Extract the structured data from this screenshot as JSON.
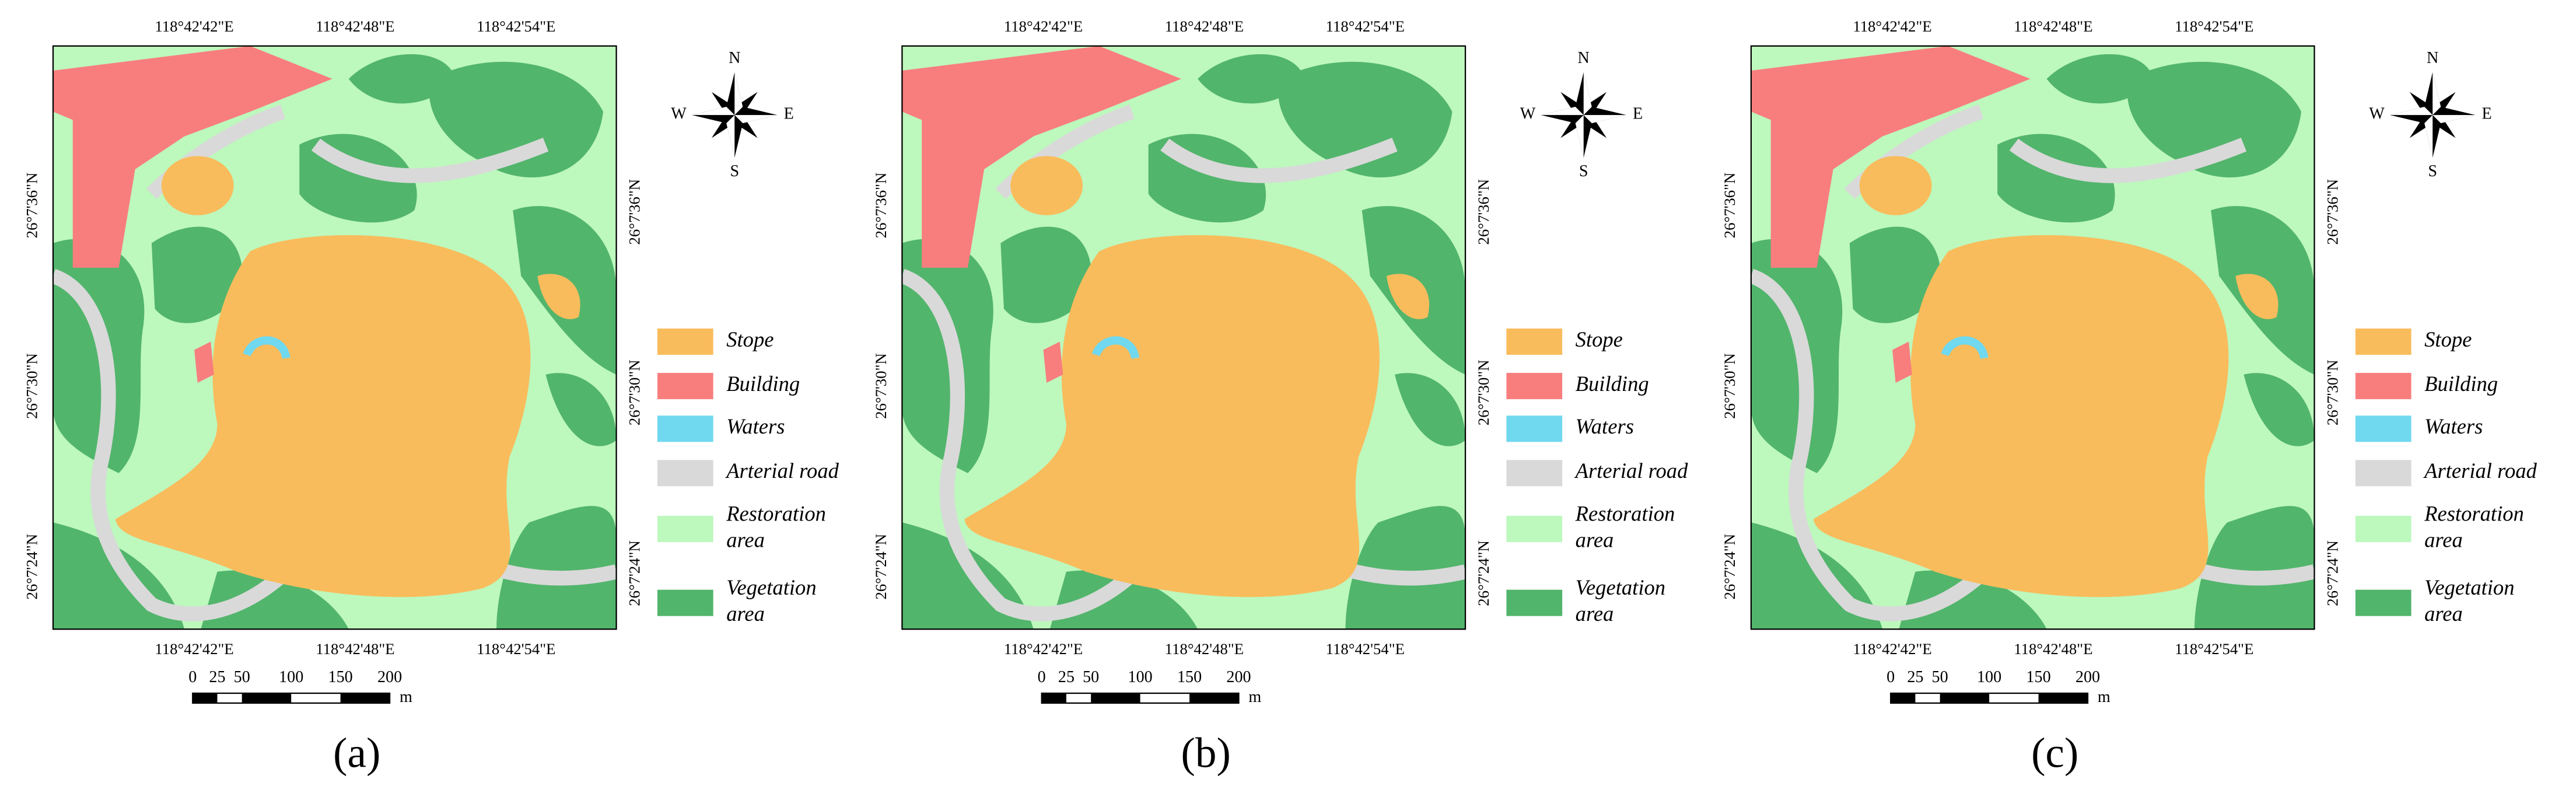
{
  "panels": [
    {
      "top_labels": [
        "118°42'42\"E",
        "118°42'48\"E",
        "118°42'54\"E"
      ],
      "bottom_labels": [
        "118°42'42\"E",
        "118°42'48\"E",
        "118°42'54\"E"
      ],
      "left_labels": [
        "26°7'36\"N",
        "26°7'30\"N",
        "26°7'24\"N"
      ],
      "right_labels": [
        "26°7'36\"N",
        "26°7'30\"N",
        "26°7'24\"N"
      ],
      "compass": {
        "n": "N",
        "e": "E",
        "s": "S",
        "w": "W"
      },
      "legend": [
        {
          "lines": [
            "Stope"
          ]
        },
        {
          "lines": [
            "Building"
          ]
        },
        {
          "lines": [
            "Waters"
          ]
        },
        {
          "lines": [
            "Arterial road"
          ]
        },
        {
          "lines": [
            "Restoration",
            "area"
          ]
        },
        {
          "lines": [
            "Vegetation",
            "area"
          ]
        }
      ],
      "scale": {
        "ticks": [
          0,
          25,
          50,
          100,
          150,
          200
        ],
        "unit": "m"
      },
      "caption": "(a)"
    },
    {
      "top_labels": [
        "118°42'42\"E",
        "118°42'48\"E",
        "118°42'54\"E"
      ],
      "bottom_labels": [
        "118°42'42\"E",
        "118°42'48\"E",
        "118°42'54\"E"
      ],
      "left_labels": [
        "26°7'36\"N",
        "26°7'30\"N",
        "26°7'24\"N"
      ],
      "right_labels": [
        "26°7'36\"N",
        "26°7'30\"N",
        "26°7'24\"N"
      ],
      "compass": {
        "n": "N",
        "e": "E",
        "s": "S",
        "w": "W"
      },
      "legend": [
        {
          "lines": [
            "Stope"
          ]
        },
        {
          "lines": [
            "Building"
          ]
        },
        {
          "lines": [
            "Waters"
          ]
        },
        {
          "lines": [
            "Arterial road"
          ]
        },
        {
          "lines": [
            "Restoration",
            "area"
          ]
        },
        {
          "lines": [
            "Vegetation",
            "area"
          ]
        }
      ],
      "scale": {
        "ticks": [
          0,
          25,
          50,
          100,
          150,
          200
        ],
        "unit": "m"
      },
      "caption": "(b)"
    },
    {
      "top_labels": [
        "118°42'42\"E",
        "118°42'48\"E",
        "118°42'54\"E"
      ],
      "bottom_labels": [
        "118°42'42\"E",
        "118°42'48\"E",
        "118°42'54\"E"
      ],
      "left_labels": [
        "26°7'36\"N",
        "26°7'30\"N",
        "26°7'24\"N"
      ],
      "right_labels": [
        "26°7'36\"N",
        "26°7'30\"N",
        "26°7'24\"N"
      ],
      "compass": {
        "n": "N",
        "e": "E",
        "s": "S",
        "w": "W"
      },
      "legend": [
        {
          "lines": [
            "Stope"
          ]
        },
        {
          "lines": [
            "Building"
          ]
        },
        {
          "lines": [
            "Waters"
          ]
        },
        {
          "lines": [
            "Arterial road"
          ]
        },
        {
          "lines": [
            "Restoration",
            "area"
          ]
        },
        {
          "lines": [
            "Vegetation",
            "area"
          ]
        }
      ],
      "scale": {
        "ticks": [
          0,
          25,
          50,
          100,
          150,
          200
        ],
        "unit": "m"
      },
      "caption": "(c)"
    }
  ]
}
